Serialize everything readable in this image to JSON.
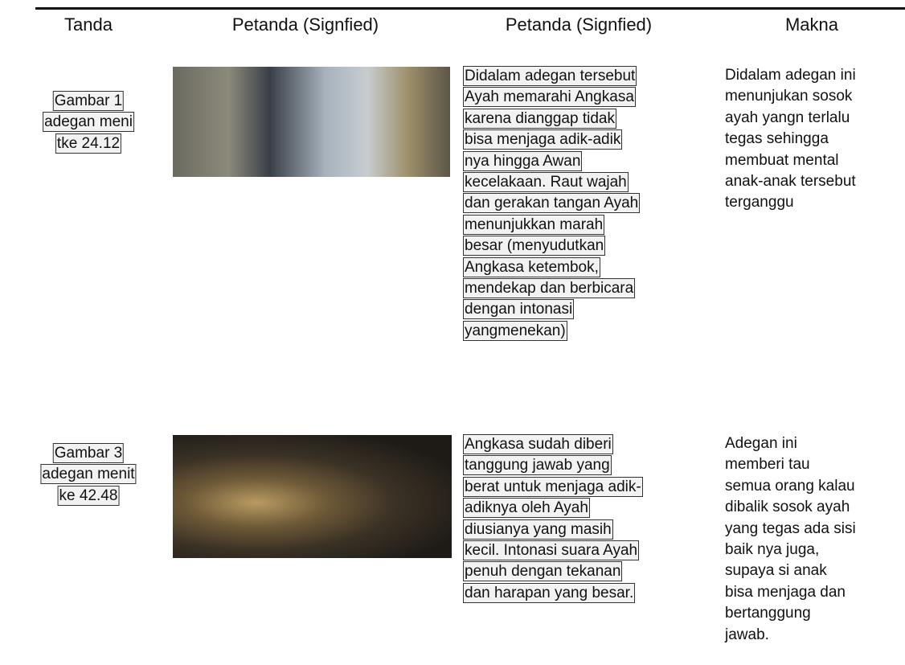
{
  "header": [
    "Tanda",
    "Petanda (Signfied)",
    "Petanda (Signfied)",
    "Makna"
  ],
  "rows": [
    {
      "sign": [
        "Gambar 1",
        "adegan meni",
        "tke 24.12"
      ],
      "signified": [
        "Didalam adegan tersebut",
        "Ayah memarahi Angkasa",
        "karena dianggap tidak",
        "bisa menjaga adik-adik",
        "nya hingga Awan",
        "kecelakaan. Raut wajah",
        "dan gerakan tangan Ayah",
        "menunjukkan marah",
        "besar (menyudutkan",
        "Angkasa ketembok,",
        "mendekap dan berbicara",
        "dengan intonasi",
        "yangmenekan)"
      ],
      "meaning": [
        "Didalam adegan ini",
        "menunjukan sosok",
        "ayah yangn terlalu",
        "tegas sehingga",
        "membuat mental",
        "anak-anak tersebut",
        "terganggu"
      ]
    },
    {
      "sign": [
        "Gambar 3",
        "adegan menit",
        "ke 42.48"
      ],
      "signified": [
        "Angkasa sudah diberi",
        "tanggung jawab yang",
        "berat untuk menjaga adik-",
        "adiknya oleh Ayah",
        "diusianya yang masih",
        "kecil. Intonasi suara Ayah",
        "penuh dengan tekanan",
        "dan harapan yang besar."
      ],
      "meaning": [
        "Adegan ini",
        "memberi tau",
        "semua orang kalau",
        "dibalik sosok ayah",
        "yang tegas ada sisi",
        "baik nya juga,",
        "supaya si anak",
        "bisa menjaga dan",
        "bertanggung",
        "jawab."
      ]
    }
  ]
}
